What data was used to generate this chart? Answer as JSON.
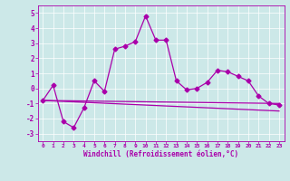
{
  "xlabel": "Windchill (Refroidissement éolien,°C)",
  "bg_color": "#cce8e8",
  "line_color": "#aa00aa",
  "xlim": [
    -0.5,
    23.5
  ],
  "ylim": [
    -3.5,
    5.5
  ],
  "xticks": [
    0,
    1,
    2,
    3,
    4,
    5,
    6,
    7,
    8,
    9,
    10,
    11,
    12,
    13,
    14,
    15,
    16,
    17,
    18,
    19,
    20,
    21,
    22,
    23
  ],
  "yticks": [
    -3,
    -2,
    -1,
    0,
    1,
    2,
    3,
    4,
    5
  ],
  "line1_x": [
    0,
    1,
    2,
    3,
    4,
    5,
    6,
    7,
    8,
    9,
    10,
    11,
    12,
    13,
    14,
    15,
    16,
    17,
    18,
    19,
    20,
    21,
    22,
    23
  ],
  "line1_y": [
    -0.8,
    0.2,
    -2.2,
    -2.6,
    -1.3,
    0.5,
    -0.2,
    2.6,
    2.8,
    3.1,
    4.8,
    3.2,
    3.2,
    0.5,
    -0.1,
    0.0,
    0.4,
    1.2,
    1.1,
    0.8,
    0.5,
    -0.5,
    -1.0,
    -1.1
  ],
  "line2_x": [
    0,
    23
  ],
  "line2_y": [
    -0.8,
    -1.0
  ],
  "line3_x": [
    0,
    23
  ],
  "line3_y": [
    -0.8,
    -1.5
  ],
  "marker_size": 2.5,
  "linewidth": 0.9,
  "xlabel_fontsize": 5.5,
  "tick_fontsize_x": 4.5,
  "tick_fontsize_y": 5.5,
  "grid_color": "#ffffff",
  "grid_linewidth": 0.5
}
